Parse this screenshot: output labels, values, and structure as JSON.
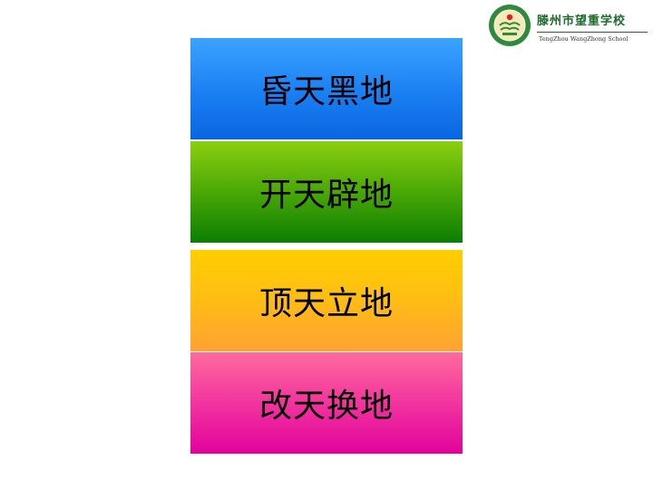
{
  "logo": {
    "name": "滕州市望重学校",
    "english": "TengZhou WangZhong School",
    "icon": "school-emblem-icon"
  },
  "cards": [
    {
      "label": "昏天黑地",
      "color": "#1a7ff3"
    },
    {
      "label": "开天辟地",
      "color": "#4aa806"
    },
    {
      "label": "顶天立地",
      "color": "#ffbc14"
    },
    {
      "label": "改天换地",
      "color": "#f2349f"
    }
  ]
}
